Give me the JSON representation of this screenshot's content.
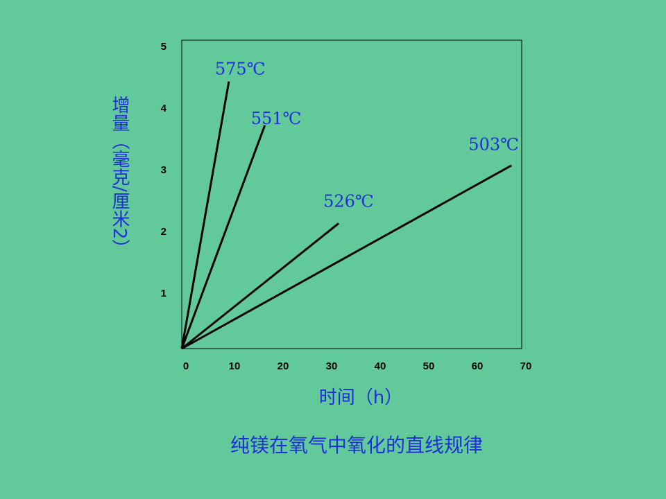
{
  "chart_data": {
    "type": "line",
    "title": "纯镁在氧气中氧化的直线规律",
    "x_label": "时间（h）",
    "y_label": "增量（毫克/厘米2）",
    "xlim": [
      0,
      70
    ],
    "xticks": [
      0,
      10,
      20,
      30,
      40,
      50,
      60,
      70
    ],
    "ylim": [
      0,
      5
    ],
    "yticks": [
      1,
      2,
      3,
      4,
      5
    ],
    "grid": false,
    "series": [
      {
        "name": "575℃",
        "color": "#000000",
        "x": [
          0,
          9.7
        ],
        "values": [
          0,
          4.33
        ]
      },
      {
        "name": "551℃",
        "color": "#000000",
        "x": [
          0,
          17.1
        ],
        "values": [
          0,
          3.62
        ]
      },
      {
        "name": "526℃",
        "color": "#000000",
        "x": [
          0,
          32.3
        ],
        "values": [
          0,
          2.03
        ]
      },
      {
        "name": "503℃",
        "color": "#000000",
        "x": [
          0,
          67.9
        ],
        "values": [
          0,
          2.97
        ]
      }
    ]
  }
}
